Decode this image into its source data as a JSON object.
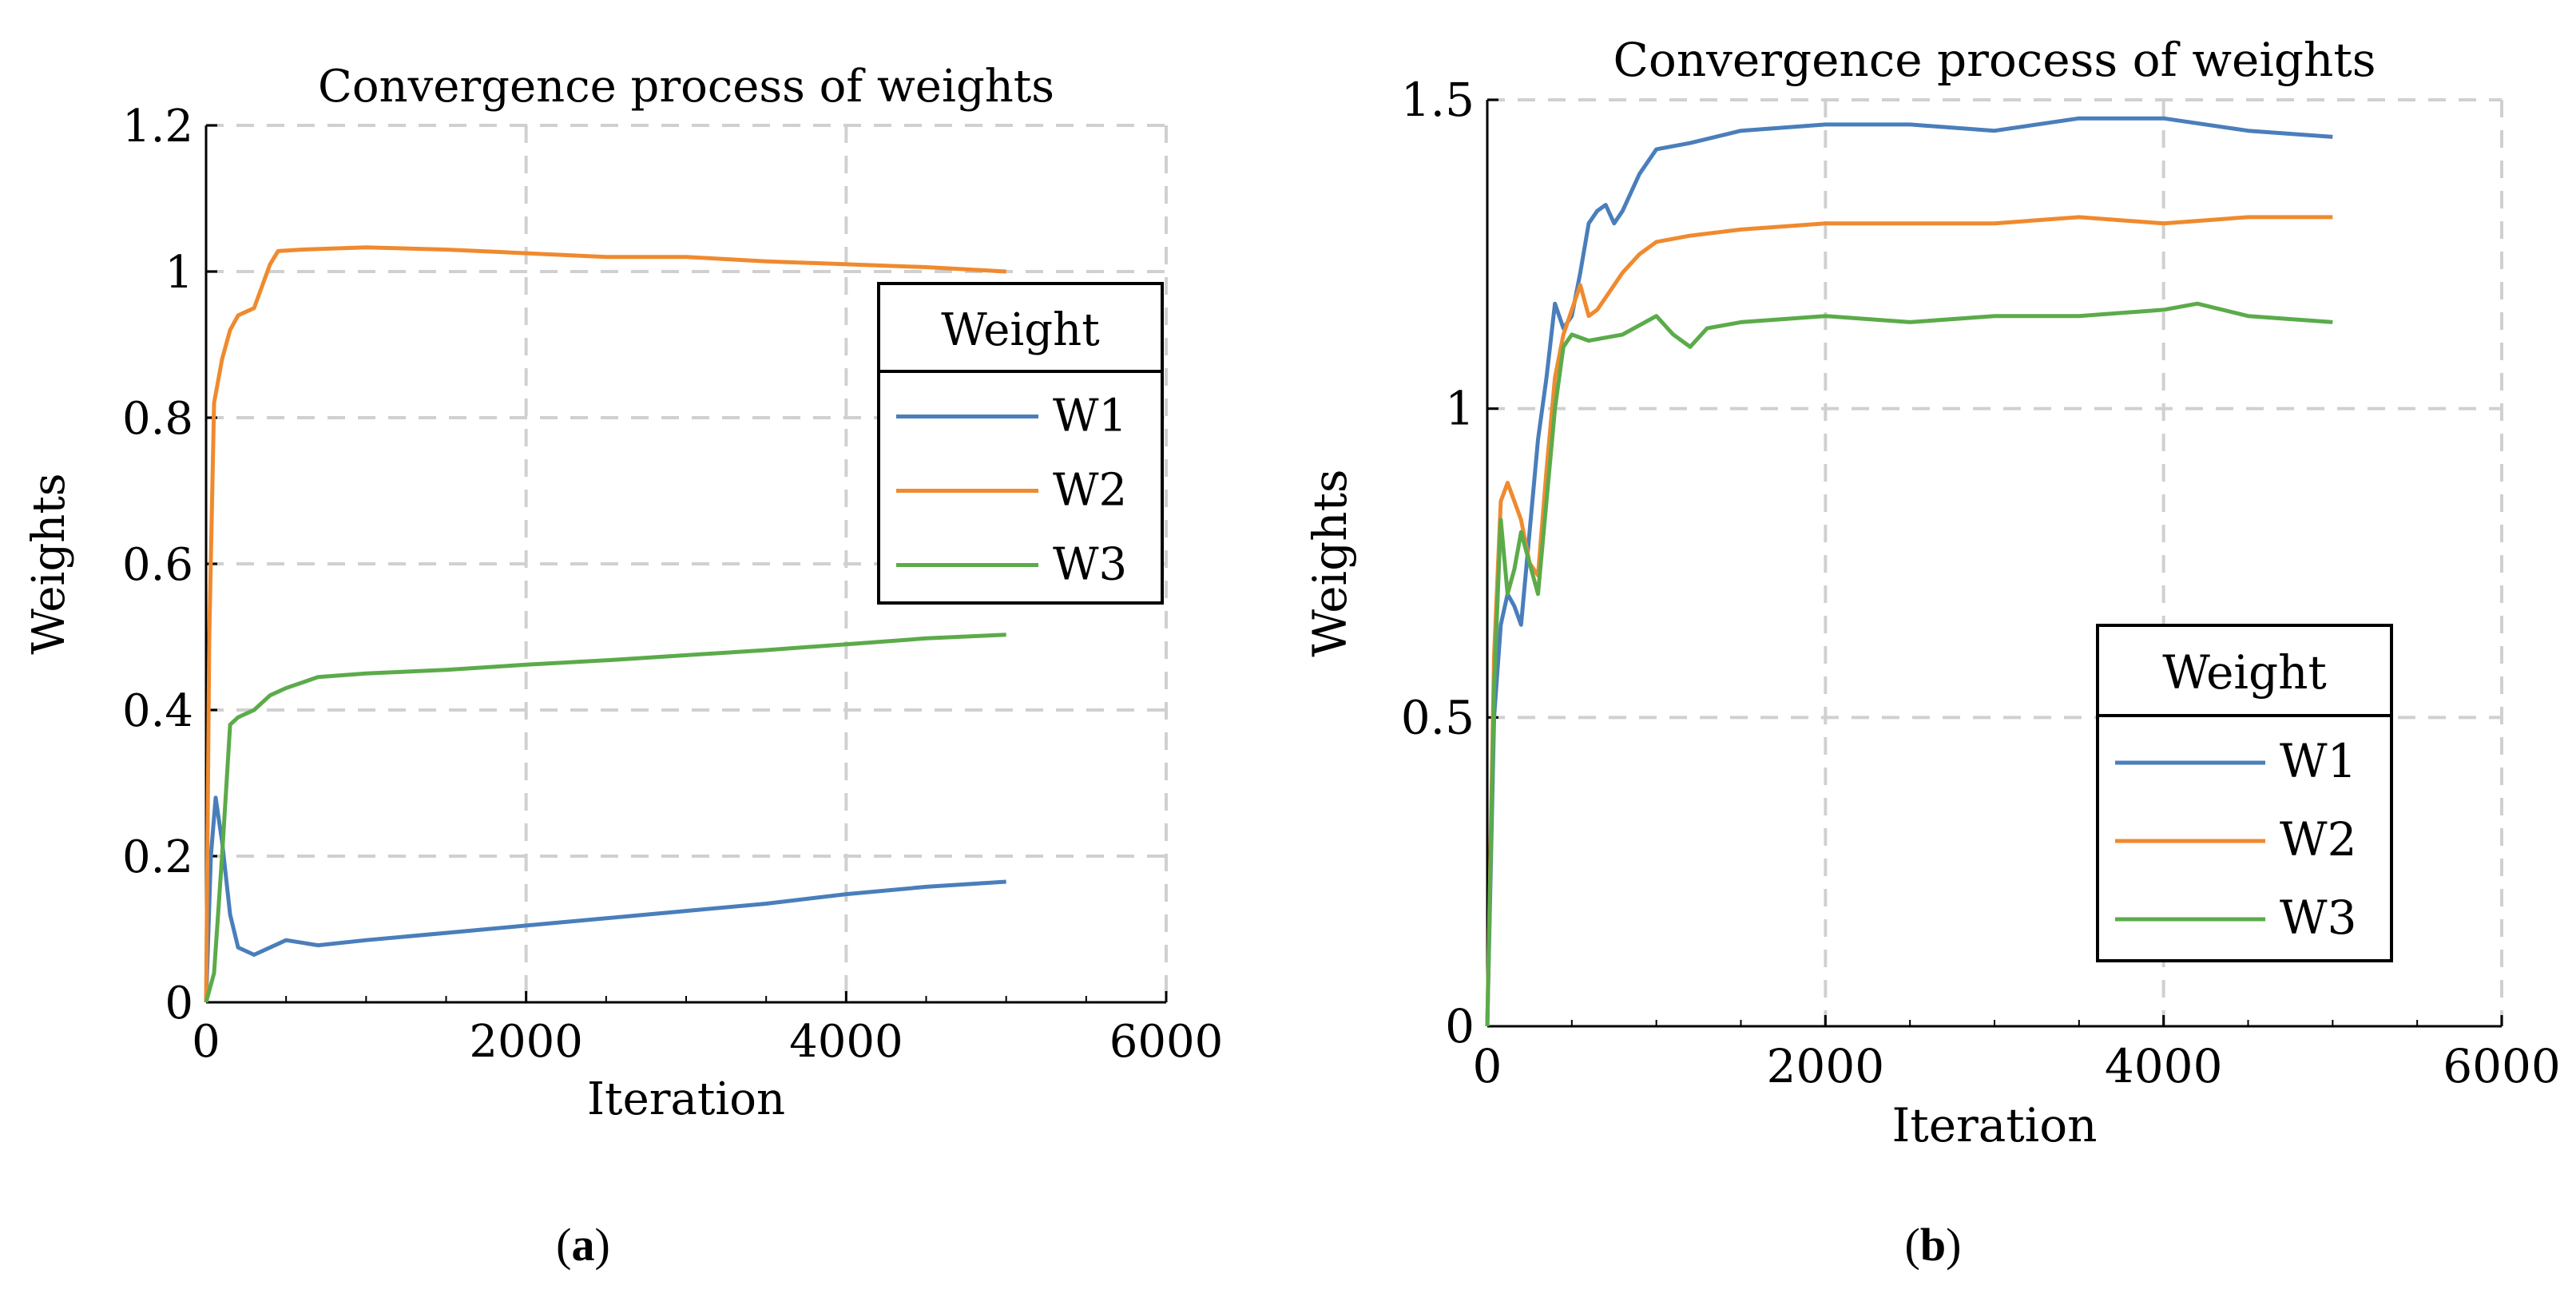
{
  "captions": {
    "left": "a",
    "right": "b"
  },
  "chart_data": [
    {
      "type": "line",
      "title": "Convergence process of weights",
      "xlabel": "Iteration",
      "ylabel": "Weights",
      "xlim": [
        0,
        6000
      ],
      "ylim": [
        0,
        1.2
      ],
      "xticks": [
        0,
        2000,
        4000,
        6000
      ],
      "xtick_labels": [
        "0",
        "2000",
        "4000",
        "6000"
      ],
      "yticks": [
        0,
        0.2,
        0.4,
        0.6,
        0.8,
        1.0,
        1.2
      ],
      "ytick_labels": [
        "0",
        "0.2",
        "0.4",
        "0.6",
        "0.8",
        "1",
        "1.2"
      ],
      "grid": true,
      "legend": {
        "title": "Weight",
        "position": "center-right"
      },
      "series": [
        {
          "name": "W1",
          "color": "#4a7ebb",
          "x": [
            0,
            30,
            60,
            100,
            150,
            200,
            300,
            500,
            700,
            1000,
            1500,
            2000,
            2500,
            3000,
            3500,
            4000,
            4500,
            5000
          ],
          "y": [
            0.0,
            0.2,
            0.28,
            0.22,
            0.12,
            0.075,
            0.065,
            0.085,
            0.078,
            0.085,
            0.095,
            0.105,
            0.115,
            0.125,
            0.135,
            0.148,
            0.158,
            0.165
          ]
        },
        {
          "name": "W2",
          "color": "#ef8a2f",
          "x": [
            0,
            20,
            50,
            100,
            150,
            200,
            250,
            300,
            350,
            400,
            450,
            600,
            1000,
            1500,
            2000,
            2500,
            3000,
            3500,
            4000,
            4500,
            5000
          ],
          "y": [
            0.0,
            0.5,
            0.82,
            0.88,
            0.92,
            0.94,
            0.945,
            0.95,
            0.98,
            1.01,
            1.028,
            1.03,
            1.033,
            1.03,
            1.025,
            1.02,
            1.02,
            1.014,
            1.01,
            1.006,
            1.0
          ]
        },
        {
          "name": "W3",
          "color": "#5bab4a",
          "x": [
            0,
            50,
            100,
            150,
            200,
            300,
            400,
            500,
            700,
            1000,
            1500,
            2000,
            2500,
            3000,
            3500,
            4000,
            4500,
            5000
          ],
          "y": [
            0.0,
            0.04,
            0.2,
            0.38,
            0.39,
            0.4,
            0.42,
            0.43,
            0.445,
            0.45,
            0.455,
            0.462,
            0.468,
            0.475,
            0.482,
            0.49,
            0.498,
            0.503
          ]
        }
      ]
    },
    {
      "type": "line",
      "title": "Convergence process of weights",
      "xlabel": "Iteration",
      "ylabel": "Weights",
      "xlim": [
        0,
        6000
      ],
      "ylim": [
        0,
        1.5
      ],
      "xticks": [
        0,
        2000,
        4000,
        6000
      ],
      "xtick_labels": [
        "0",
        "2000",
        "4000",
        "6000"
      ],
      "yticks": [
        0,
        0.5,
        1.0,
        1.5
      ],
      "ytick_labels": [
        "0",
        "0.5",
        "1",
        "1.5"
      ],
      "grid": true,
      "legend": {
        "title": "Weight",
        "position": "bottom-right"
      },
      "series": [
        {
          "name": "W1",
          "color": "#4a7ebb",
          "x": [
            0,
            40,
            80,
            120,
            160,
            200,
            250,
            300,
            350,
            400,
            450,
            500,
            550,
            600,
            650,
            700,
            750,
            800,
            900,
            1000,
            1200,
            1500,
            2000,
            2500,
            3000,
            3500,
            4000,
            4500,
            5000
          ],
          "y": [
            0.0,
            0.5,
            0.65,
            0.7,
            0.68,
            0.65,
            0.8,
            0.95,
            1.05,
            1.17,
            1.13,
            1.15,
            1.22,
            1.3,
            1.32,
            1.33,
            1.3,
            1.32,
            1.38,
            1.42,
            1.43,
            1.45,
            1.46,
            1.46,
            1.45,
            1.47,
            1.47,
            1.45,
            1.44
          ]
        },
        {
          "name": "W2",
          "color": "#ef8a2f",
          "x": [
            0,
            40,
            80,
            120,
            160,
            200,
            250,
            300,
            350,
            400,
            450,
            500,
            550,
            600,
            650,
            700,
            800,
            900,
            1000,
            1200,
            1500,
            2000,
            2500,
            3000,
            3500,
            4000,
            4500,
            5000
          ],
          "y": [
            0.0,
            0.6,
            0.85,
            0.88,
            0.85,
            0.82,
            0.75,
            0.73,
            0.9,
            1.05,
            1.12,
            1.16,
            1.2,
            1.15,
            1.16,
            1.18,
            1.22,
            1.25,
            1.27,
            1.28,
            1.29,
            1.3,
            1.3,
            1.3,
            1.31,
            1.3,
            1.31,
            1.31
          ]
        },
        {
          "name": "W3",
          "color": "#5bab4a",
          "x": [
            0,
            40,
            80,
            120,
            160,
            200,
            250,
            300,
            350,
            400,
            450,
            500,
            600,
            800,
            1000,
            1100,
            1200,
            1300,
            1500,
            2000,
            2500,
            3000,
            3500,
            4000,
            4200,
            4500,
            5000
          ],
          "y": [
            0.0,
            0.55,
            0.82,
            0.7,
            0.74,
            0.8,
            0.75,
            0.7,
            0.85,
            1.0,
            1.1,
            1.12,
            1.11,
            1.12,
            1.15,
            1.12,
            1.1,
            1.13,
            1.14,
            1.15,
            1.14,
            1.15,
            1.15,
            1.16,
            1.17,
            1.15,
            1.14
          ]
        }
      ]
    }
  ]
}
